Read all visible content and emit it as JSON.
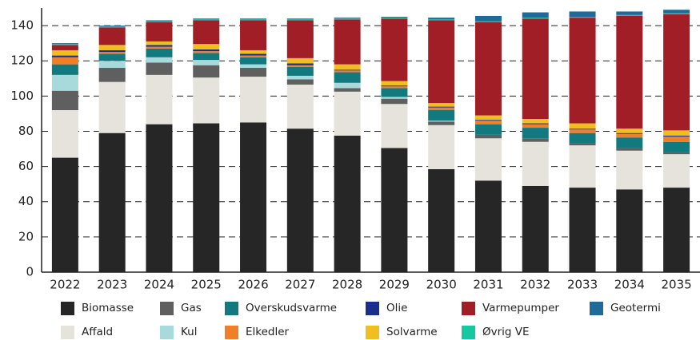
{
  "chart_data": {
    "type": "stacked_bar",
    "categories": [
      "2022",
      "2023",
      "2024",
      "2025",
      "2026",
      "2027",
      "2028",
      "2029",
      "2030",
      "2031",
      "2032",
      "2033",
      "2034",
      "2035"
    ],
    "series": [
      {
        "name": "Biomasse",
        "color": "#262626",
        "values": [
          65,
          79,
          84,
          84.5,
          85,
          81.5,
          77.5,
          70.5,
          58.5,
          52,
          49,
          48,
          47,
          48
        ]
      },
      {
        "name": "Affald",
        "color": "#e6e3dc",
        "values": [
          27,
          29,
          28,
          26,
          26,
          25,
          25,
          25,
          25,
          24,
          25,
          24,
          22,
          19
        ]
      },
      {
        "name": "Gas",
        "color": "#5f5f5f",
        "values": [
          11,
          8,
          7,
          7,
          5,
          3,
          2,
          3,
          2,
          2,
          2,
          1,
          1.5,
          1
        ]
      },
      {
        "name": "Kul",
        "color": "#a8dadc",
        "values": [
          9,
          4,
          3,
          3,
          2,
          2,
          3,
          1,
          0.5,
          0,
          0,
          0,
          0,
          0
        ]
      },
      {
        "name": "Overskudsvarme",
        "color": "#127a7f",
        "values": [
          6,
          4,
          5,
          4,
          4,
          5,
          6,
          5,
          6,
          6,
          6,
          6,
          6,
          6
        ]
      },
      {
        "name": "Elkedler",
        "color": "#f07f2a",
        "values": [
          4,
          1,
          1,
          1,
          1,
          1,
          1,
          1,
          1.5,
          2,
          2,
          2,
          2,
          3
        ]
      },
      {
        "name": "Olie",
        "color": "#1a2f8c",
        "values": [
          1,
          1,
          1,
          1,
          1,
          1,
          0.5,
          0.5,
          0.5,
          0.5,
          0.5,
          0.5,
          0.5,
          0.5
        ]
      },
      {
        "name": "Solvarme",
        "color": "#efbf22",
        "values": [
          3,
          3,
          2,
          3,
          2,
          3,
          3,
          2.5,
          2,
          2.5,
          2.5,
          3,
          2.5,
          3
        ]
      },
      {
        "name": "Varmepumper",
        "color": "#a21e26",
        "values": [
          3,
          10,
          11,
          13.5,
          17,
          21.5,
          25.5,
          35.5,
          47,
          53,
          57,
          60,
          64,
          66
        ]
      },
      {
        "name": "Øvrig VE",
        "color": "#16c7a0",
        "values": [
          0.5,
          0.5,
          0.5,
          0.5,
          0.5,
          0.5,
          0.5,
          0.5,
          0.5,
          0.5,
          0.5,
          0.5,
          0.5,
          0.5
        ]
      },
      {
        "name": "Geotermi",
        "color": "#1f6a99",
        "values": [
          0.5,
          0.5,
          0.5,
          0.5,
          0.5,
          0.5,
          0.5,
          0.5,
          1,
          3,
          3,
          3,
          2,
          2
        ]
      }
    ],
    "ylim": [
      0,
      150
    ],
    "yticks": [
      0,
      20,
      40,
      60,
      80,
      100,
      120,
      140
    ],
    "grid": true
  }
}
